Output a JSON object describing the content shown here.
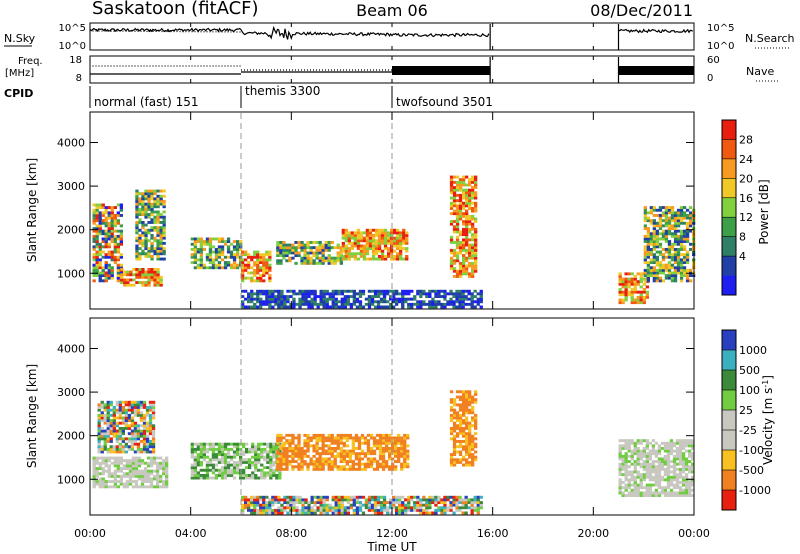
{
  "header": {
    "station": "Saskatoon (fitACF)",
    "beam": "Beam 06",
    "date": "08/Dec/2011"
  },
  "noise_panel": {
    "left_label": "N.Sky",
    "left_ticks": [
      "10^5",
      "10^0"
    ],
    "right_ticks": [
      "10^5",
      "10^0"
    ],
    "right_label": "N.Search",
    "right_label_style": "dotted"
  },
  "freq_panel": {
    "left_label_1": "Freq.",
    "left_label_2": "[MHz]",
    "left_ticks": [
      "18",
      "8"
    ],
    "right_ticks": [
      "60",
      "0"
    ],
    "right_label": "Nave",
    "right_label_style": "dotted"
  },
  "cpid_panel": {
    "label": "CPID",
    "segments": [
      {
        "text": "normal (fast) 151",
        "start_hour": 0
      },
      {
        "text": "themis 3300",
        "start_hour": 6
      },
      {
        "text": "twofsound 3501",
        "start_hour": 12
      }
    ]
  },
  "axes": {
    "ylabel": "Slant Range [km]",
    "xlabel": "Time UT",
    "x_ticks": [
      "00:00",
      "04:00",
      "08:00",
      "12:00",
      "16:00",
      "20:00",
      "00:00"
    ],
    "x_tick_hours": [
      0,
      4,
      8,
      12,
      16,
      20,
      24
    ],
    "y_ticks": [
      "1000",
      "2000",
      "3000",
      "4000"
    ],
    "y_tick_values": [
      1000,
      2000,
      3000,
      4000
    ],
    "ylim": [
      180,
      4700
    ],
    "xlim": [
      0,
      24
    ]
  },
  "power_colorbar": {
    "label": "Power [dB]",
    "labels": [
      "28",
      "24",
      "20",
      "16",
      "12",
      "8",
      "4"
    ],
    "colors": [
      "#e81f10",
      "#f05a10",
      "#f89a20",
      "#f0c828",
      "#80d040",
      "#3ca048",
      "#2e7f66",
      "#2040a8",
      "#1e1ef0"
    ]
  },
  "velocity_colorbar": {
    "label": "Velocity [m s-1]",
    "label_main": "Velocity [m s",
    "label_sup": "-1",
    "label_end": "]",
    "labels": [
      "1000",
      "500",
      "100",
      "25",
      "-25",
      "-100",
      "-500",
      "-1000"
    ],
    "colors": [
      "#2840c0",
      "#3cb0c0",
      "#3a8a3a",
      "#70cc40",
      "#c8c8c0",
      "#c8c8c0",
      "#f8c020",
      "#f08020",
      "#e82010"
    ]
  },
  "chart_data": {
    "type": "heatmap",
    "title": "Saskatoon (fitACF) Beam 06 08/Dec/2011",
    "xlabel": "Time UT",
    "ylabel": "Slant Range [km]",
    "x_unit": "hours UT",
    "xlim": [
      0,
      24
    ],
    "ylim": [
      180,
      4700
    ],
    "data_gap_hours": [
      15.9,
      21.0
    ],
    "cpid_changes": [
      {
        "hour": 0,
        "program": "normal (fast) 151"
      },
      {
        "hour": 6,
        "program": "themis 3300"
      },
      {
        "hour": 12,
        "program": "twofsound 3501"
      }
    ],
    "noise_sky_level": [
      {
        "t": 0,
        "v": 3.5
      },
      {
        "t": 6,
        "v": 3.2
      },
      {
        "t": 8,
        "v": 3.0
      },
      {
        "t": 12,
        "v": 2.6
      },
      {
        "t": 14,
        "v": 2.4
      },
      {
        "t": 15.5,
        "v": 3.0
      },
      {
        "t": 21,
        "v": 4.0
      },
      {
        "t": 24,
        "v": 3.4
      }
    ],
    "frequency_mhz": [
      {
        "t": 0,
        "v": 11.5
      },
      {
        "t": 6,
        "v": 10.5
      },
      {
        "t": 12,
        "v": 10.5
      },
      {
        "t": 16,
        "v": 10.5
      },
      {
        "t": 21,
        "v": 10.5
      },
      {
        "t": 24,
        "v": 10.5
      }
    ],
    "power_regions": [
      {
        "t0": 0.1,
        "t1": 1.2,
        "r0": 800,
        "r1": 2600,
        "level": "mixed",
        "peak_db": 28
      },
      {
        "t0": 1.2,
        "t1": 2.8,
        "r0": 700,
        "r1": 1100,
        "level": "high",
        "peak_db": 28
      },
      {
        "t0": 1.8,
        "t1": 3.0,
        "r0": 1300,
        "r1": 2900,
        "level": "moderate",
        "peak_db": 16
      },
      {
        "t0": 4.0,
        "t1": 6.0,
        "r0": 1100,
        "r1": 1800,
        "level": "moderate",
        "peak_db": 16
      },
      {
        "t0": 6.0,
        "t1": 7.2,
        "r0": 800,
        "r1": 1500,
        "level": "high",
        "peak_db": 28
      },
      {
        "t0": 7.4,
        "t1": 10.0,
        "r0": 1200,
        "r1": 1700,
        "level": "moderate",
        "peak_db": 20
      },
      {
        "t0": 10.0,
        "t1": 12.6,
        "r0": 1300,
        "r1": 2000,
        "level": "high",
        "peak_db": 24
      },
      {
        "t0": 14.3,
        "t1": 15.3,
        "r0": 900,
        "r1": 3200,
        "level": "high",
        "peak_db": 28
      },
      {
        "t0": 21.0,
        "t1": 22.2,
        "r0": 300,
        "r1": 1000,
        "level": "high",
        "peak_db": 28
      },
      {
        "t0": 22.0,
        "t1": 24.0,
        "r0": 800,
        "r1": 2500,
        "level": "moderate",
        "peak_db": 16
      },
      {
        "t0": 6.0,
        "t1": 15.5,
        "r0": 200,
        "r1": 600,
        "level": "low",
        "peak_db": 8
      }
    ],
    "velocity_regions": [
      {
        "t0": 0.1,
        "t1": 3.0,
        "r0": 800,
        "r1": 1500,
        "velocity_class": "near-zero"
      },
      {
        "t0": 0.3,
        "t1": 2.5,
        "r0": 1600,
        "r1": 2800,
        "velocity_class": "mixed"
      },
      {
        "t0": 4.0,
        "t1": 7.5,
        "r0": 1000,
        "r1": 1800,
        "velocity_class": "positive"
      },
      {
        "t0": 7.4,
        "t1": 12.6,
        "r0": 1200,
        "r1": 2000,
        "velocity_class": "negative"
      },
      {
        "t0": 14.3,
        "t1": 15.3,
        "r0": 1300,
        "r1": 3000,
        "velocity_class": "negative"
      },
      {
        "t0": 21.0,
        "t1": 24.0,
        "r0": 600,
        "r1": 1900,
        "velocity_class": "near-zero"
      },
      {
        "t0": 6.0,
        "t1": 15.5,
        "r0": 200,
        "r1": 600,
        "velocity_class": "mixed"
      }
    ],
    "grid": false
  }
}
